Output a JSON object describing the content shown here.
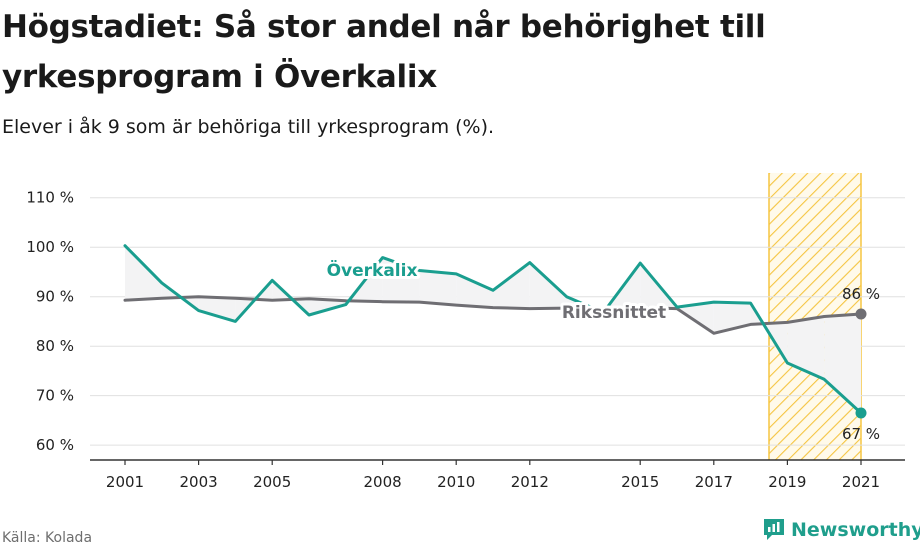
{
  "header": {
    "title": "Högstadiet: Så stor andel når behörighet till yrkesprogram i Överkalix",
    "subtitle": "Elever i åk 9 som är behöriga till yrkesprogram (%)."
  },
  "footer": {
    "source": "Källa: Kolada",
    "brand": "Newsworthy"
  },
  "colors": {
    "overkalix": "#1a9e8f",
    "riket": "#6f6e73",
    "highlight": "#f5c542",
    "grid": "#e0e0e0",
    "brand": "#1f9e8c"
  },
  "chart_data": {
    "type": "line",
    "x": [
      2001,
      2002,
      2003,
      2004,
      2005,
      2006,
      2007,
      2008,
      2009,
      2010,
      2011,
      2012,
      2013,
      2014,
      2015,
      2016,
      2017,
      2018,
      2019,
      2020,
      2021
    ],
    "x_tick_labels": [
      "2001",
      "2003",
      "2005",
      "2008",
      "2010",
      "2012",
      "2015",
      "2017",
      "2019",
      "2021"
    ],
    "y_ticks": [
      60,
      70,
      80,
      90,
      100,
      110
    ],
    "y_tick_labels": [
      "60 %",
      "70 %",
      "80 %",
      "90 %",
      "100 %",
      "110 %"
    ],
    "ylim": [
      57,
      115
    ],
    "series": [
      {
        "name": "Överkalix",
        "color": "#1a9e8f",
        "values": [
          100.3,
          92.8,
          87.2,
          85.0,
          93.3,
          86.3,
          88.4,
          97.9,
          95.3,
          94.6,
          91.3,
          96.9,
          90.0,
          86.8,
          96.8,
          87.9,
          88.9,
          88.7,
          76.6,
          73.3,
          66.5
        ],
        "end_label": "67 %"
      },
      {
        "name": "Rikssnittet",
        "color": "#6f6e73",
        "values": [
          89.3,
          89.7,
          90.0,
          89.7,
          89.3,
          89.6,
          89.2,
          89.0,
          88.9,
          88.3,
          87.8,
          87.6,
          87.7,
          87.6,
          87.8,
          87.6,
          82.6,
          84.4,
          84.8,
          86.0,
          86.5
        ],
        "end_label": "86 %"
      }
    ],
    "highlight_range": [
      2018.5,
      2021
    ],
    "grid": true,
    "legend": "inline labels"
  }
}
